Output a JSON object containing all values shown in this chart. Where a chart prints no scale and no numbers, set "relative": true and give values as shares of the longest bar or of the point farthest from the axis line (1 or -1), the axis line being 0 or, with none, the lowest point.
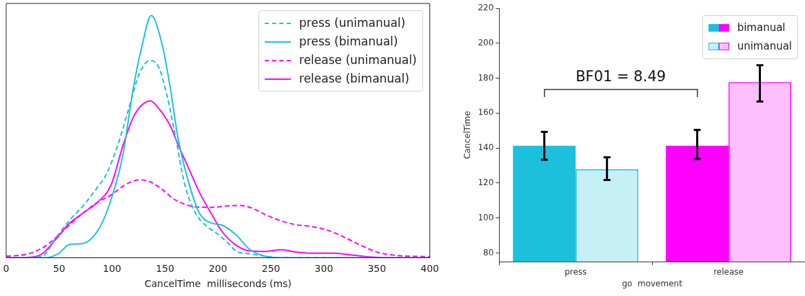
{
  "chart_data": [
    {
      "type": "line",
      "relative": true,
      "xlabel": "CancelTime  milliseconds (ms)",
      "xlim": [
        0,
        400
      ],
      "xticks": [
        0,
        50,
        100,
        150,
        200,
        250,
        300,
        350,
        400
      ],
      "tick_labels": "x",
      "legend": "top right",
      "grid": false,
      "marker": "none",
      "series": [
        {
          "name": "press (unimanual)",
          "color": "#1cc0dc",
          "line_style": "dashed",
          "x": [
            0,
            34,
            47,
            60,
            73,
            86,
            94,
            105,
            115,
            126,
            136,
            144,
            152,
            160,
            168,
            178,
            189,
            199,
            210,
            217,
            230,
            244,
            257,
            400
          ],
          "values": [
            0,
            0.006,
            0.083,
            0.156,
            0.216,
            0.29,
            0.34,
            0.46,
            0.605,
            0.763,
            0.814,
            0.787,
            0.666,
            0.496,
            0.313,
            0.19,
            0.131,
            0.1,
            0.058,
            0.028,
            0.016,
            0.007,
            0,
            0
          ]
        },
        {
          "name": "press (bimanual)",
          "color": "#1cc0dc",
          "line_style": "solid",
          "x": [
            0,
            20,
            36,
            49,
            60,
            70,
            78,
            89,
            99,
            110,
            120,
            128,
            137,
            147,
            155,
            162,
            173,
            183,
            194,
            204,
            217,
            230,
            244,
            257,
            400
          ],
          "values": [
            0,
            0,
            0,
            0.016,
            0.055,
            0.057,
            0.07,
            0.13,
            0.24,
            0.42,
            0.7,
            0.87,
            1,
            0.885,
            0.7,
            0.5,
            0.3,
            0.18,
            0.143,
            0.134,
            0.095,
            0.034,
            0.007,
            0,
            0
          ]
        },
        {
          "name": "release (unimanual)",
          "color": "#ff00ff",
          "line_style": "dashed",
          "x": [
            0,
            20,
            34,
            47,
            60,
            73,
            86,
            99,
            112,
            126,
            136,
            147,
            157,
            168,
            178,
            194,
            210,
            220,
            230,
            244,
            257,
            273,
            288,
            304,
            320,
            336,
            351,
            367,
            400
          ],
          "values": [
            0.006,
            0.015,
            0.04,
            0.083,
            0.137,
            0.186,
            0.228,
            0.259,
            0.3,
            0.322,
            0.313,
            0.283,
            0.246,
            0.222,
            0.21,
            0.208,
            0.214,
            0.216,
            0.208,
            0.18,
            0.156,
            0.137,
            0.129,
            0.113,
            0.083,
            0.049,
            0.022,
            0.01,
            0.004
          ]
        },
        {
          "name": "release (bimanual)",
          "color": "#ff00ff",
          "line_style": "solid",
          "x": [
            0,
            20,
            34,
            47,
            60,
            73,
            86,
            99,
            110,
            120,
            128,
            136,
            144,
            155,
            162,
            173,
            183,
            194,
            204,
            217,
            230,
            244,
            260,
            273,
            288,
            309,
            325,
            341,
            362,
            400
          ],
          "values": [
            0,
            0.001,
            0.016,
            0.077,
            0.143,
            0.186,
            0.228,
            0.3,
            0.46,
            0.58,
            0.63,
            0.648,
            0.617,
            0.544,
            0.47,
            0.362,
            0.265,
            0.18,
            0.107,
            0.052,
            0.028,
            0.026,
            0.033,
            0.024,
            0.019,
            0.019,
            0.012,
            0.004,
            0,
            0
          ]
        }
      ]
    },
    {
      "type": "bar",
      "xlabel": "go  movement",
      "ylabel": "CancelTime",
      "categories": [
        "press",
        "release"
      ],
      "ylim": [
        75,
        220
      ],
      "yticks": [
        80,
        100,
        120,
        140,
        160,
        180,
        200,
        220
      ],
      "legend": "top right",
      "grid": false,
      "annotations": [
        "BF01 = 8.49"
      ],
      "series": [
        {
          "name": "bimanual",
          "colors": [
            "#1cc0dc",
            "#ff00ff"
          ],
          "values": [
            141.3,
            141.3
          ],
          "errors": [
            [
              133.4,
              149.3
            ],
            [
              133.8,
              150.4
            ]
          ]
        },
        {
          "name": "unimanual",
          "colors": [
            "#1cc0dc",
            "#ff00ff"
          ],
          "values": [
            127.8,
            177.8
          ],
          "errors": [
            [
              121.7,
              134.7
            ],
            [
              166.6,
              187.4
            ]
          ]
        }
      ]
    }
  ]
}
